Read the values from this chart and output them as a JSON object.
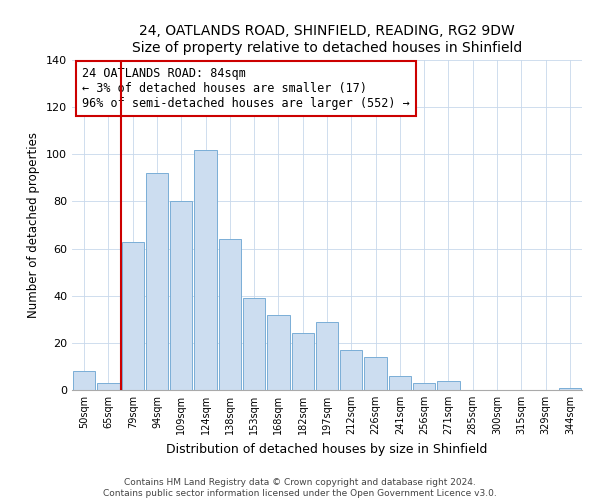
{
  "title1": "24, OATLANDS ROAD, SHINFIELD, READING, RG2 9DW",
  "title2": "Size of property relative to detached houses in Shinfield",
  "xlabel": "Distribution of detached houses by size in Shinfield",
  "ylabel": "Number of detached properties",
  "bar_labels": [
    "50sqm",
    "65sqm",
    "79sqm",
    "94sqm",
    "109sqm",
    "124sqm",
    "138sqm",
    "153sqm",
    "168sqm",
    "182sqm",
    "197sqm",
    "212sqm",
    "226sqm",
    "241sqm",
    "256sqm",
    "271sqm",
    "285sqm",
    "300sqm",
    "315sqm",
    "329sqm",
    "344sqm"
  ],
  "bar_values": [
    8,
    3,
    63,
    92,
    80,
    102,
    64,
    39,
    32,
    24,
    29,
    17,
    14,
    6,
    3,
    4,
    0,
    0,
    0,
    0,
    1
  ],
  "bar_color": "#ccddf0",
  "bar_edge_color": "#7aaed6",
  "property_line_index": 2,
  "annotation_title": "24 OATLANDS ROAD: 84sqm",
  "annotation_line1": "← 3% of detached houses are smaller (17)",
  "annotation_line2": "96% of semi-detached houses are larger (552) →",
  "annotation_box_color": "#ffffff",
  "annotation_box_edge": "#cc0000",
  "vline_color": "#cc0000",
  "ylim": [
    0,
    140
  ],
  "yticks": [
    0,
    20,
    40,
    60,
    80,
    100,
    120,
    140
  ],
  "footer1": "Contains HM Land Registry data © Crown copyright and database right 2024.",
  "footer2": "Contains public sector information licensed under the Open Government Licence v3.0."
}
